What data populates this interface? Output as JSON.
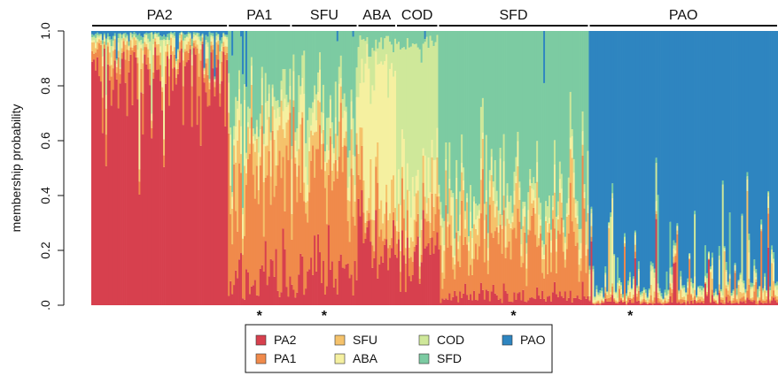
{
  "chart_data": {
    "type": "bar",
    "subtype": "stacked-membership",
    "ylabel": "membership probability",
    "ylim": [
      0,
      1
    ],
    "y_ticks": [
      {
        "value": 0.0,
        "label": ".0"
      },
      {
        "value": 0.2,
        "label": "0.2"
      },
      {
        "value": 0.4,
        "label": "0.4"
      },
      {
        "value": 0.6,
        "label": "0.6"
      },
      {
        "value": 0.8,
        "label": "0.8"
      },
      {
        "value": 1.0,
        "label": "1.0"
      }
    ],
    "clusters": [
      {
        "name": "PA2",
        "color": "#d7404e"
      },
      {
        "name": "PA1",
        "color": "#f08a4b"
      },
      {
        "name": "SFU",
        "color": "#f5c26b"
      },
      {
        "name": "ABA",
        "color": "#f5f0a0"
      },
      {
        "name": "COD",
        "color": "#cfe89a"
      },
      {
        "name": "SFD",
        "color": "#7ccba2"
      },
      {
        "name": "PAO",
        "color": "#2e85c0"
      }
    ],
    "groups": [
      {
        "label": "PA2",
        "n": 78,
        "mean_membership": [
          0.88,
          0.04,
          0.03,
          0.02,
          0.01,
          0.01,
          0.01
        ],
        "marker": ""
      },
      {
        "label": "PA1",
        "n": 36,
        "mean_membership": [
          0.1,
          0.4,
          0.12,
          0.08,
          0.05,
          0.25,
          0.0
        ],
        "marker": "*"
      },
      {
        "label": "SFU",
        "n": 38,
        "mean_membership": [
          0.12,
          0.35,
          0.08,
          0.08,
          0.07,
          0.3,
          0.0
        ],
        "marker": "*"
      },
      {
        "label": "ABA",
        "n": 22,
        "mean_membership": [
          0.22,
          0.08,
          0.1,
          0.45,
          0.1,
          0.05,
          0.0
        ],
        "marker": ""
      },
      {
        "label": "COD",
        "n": 24,
        "mean_membership": [
          0.18,
          0.08,
          0.08,
          0.12,
          0.49,
          0.05,
          0.0
        ],
        "marker": ""
      },
      {
        "label": "SFD",
        "n": 86,
        "mean_membership": [
          0.04,
          0.2,
          0.08,
          0.05,
          0.06,
          0.57,
          0.0
        ],
        "marker": "*"
      },
      {
        "label": "PAO",
        "n": 108,
        "mean_membership": [
          0.01,
          0.01,
          0.01,
          0.02,
          0.01,
          0.01,
          0.93
        ],
        "marker": "*"
      }
    ],
    "legend": {
      "placement": "bottom",
      "entries": [
        "PA2",
        "PA1",
        "SFU",
        "ABA",
        "COD",
        "SFD",
        "PAO"
      ]
    },
    "grid": false
  }
}
